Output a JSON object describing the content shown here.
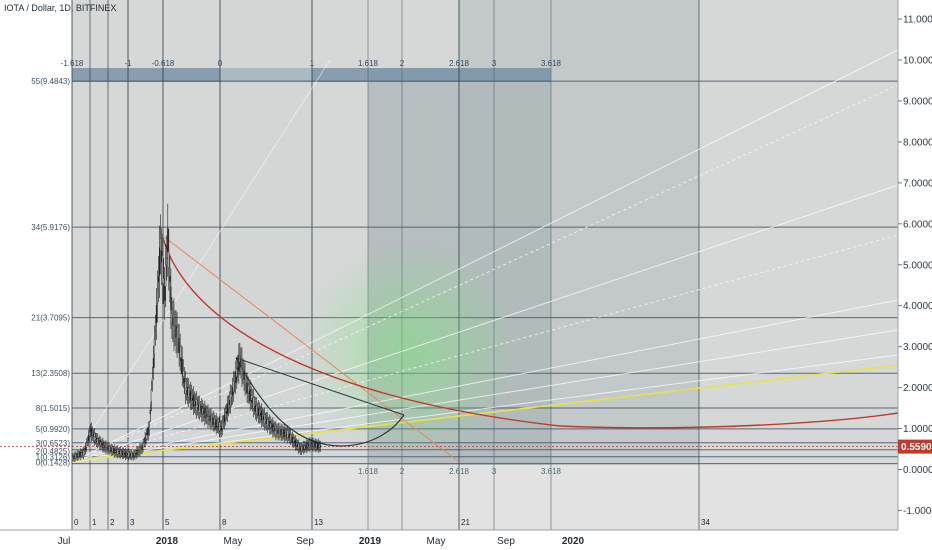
{
  "header": {
    "title": "IOTA / Dollar, 1D, BITFINEX"
  },
  "chart_data": {
    "type": "candlestick",
    "symbol": "IOTA / Dollar",
    "interval": "1D",
    "exchange": "BITFINEX",
    "ylim": [
      -1.25,
      11.4
    ],
    "y_ticks": [
      "11.0000",
      "10.0000",
      "9.0000",
      "8.0000",
      "7.0000",
      "6.0000",
      "5.0000",
      "4.0000",
      "3.0000",
      "2.0000",
      "1.0000",
      "0.0000",
      "-1.0000"
    ],
    "x_labels": [
      "Jul",
      "2018",
      "May",
      "Sep",
      "2019",
      "May",
      "Sep",
      "2020"
    ],
    "last_price": {
      "text": "0.5590",
      "value": 0.559
    },
    "fib_time_top": [
      "-1.618",
      "-1",
      "-0.618",
      "0",
      "1",
      "1.618",
      "2",
      "2.618",
      "3",
      "3.618"
    ],
    "fib_time_bottom": [
      "1.618",
      "2",
      "2.618",
      "3",
      "3.618"
    ],
    "fib_sequence": [
      "0",
      "1",
      "2",
      "3",
      "5",
      "8",
      "13",
      "21",
      "34"
    ],
    "fib_price_levels": [
      {
        "label": "55(9.4843)",
        "value": 9.4843
      },
      {
        "label": "34(5.9176)",
        "value": 5.9176
      },
      {
        "label": "21(3.7095)",
        "value": 3.7095
      },
      {
        "label": "13(2.3508)",
        "value": 2.3508
      },
      {
        "label": "8(1.5015)",
        "value": 1.5015
      },
      {
        "label": "5(0.9920)",
        "value": 0.992
      },
      {
        "label": "3(0.6523)",
        "value": 0.6523
      },
      {
        "label": "2(0.4825)",
        "value": 0.4825
      },
      {
        "label": "1(0.3126)",
        "value": 0.3126
      },
      {
        "label": "0(0.1428)",
        "value": 0.1428
      }
    ],
    "price_series": [
      {
        "t": 0,
        "price": 0.28
      },
      {
        "t": 6,
        "price": 0.35
      },
      {
        "t": 12,
        "price": 0.42
      },
      {
        "t": 18,
        "price": 0.95
      },
      {
        "t": 24,
        "price": 0.72
      },
      {
        "t": 32,
        "price": 0.55
      },
      {
        "t": 42,
        "price": 0.44
      },
      {
        "t": 52,
        "price": 0.38
      },
      {
        "t": 60,
        "price": 0.35
      },
      {
        "t": 68,
        "price": 0.52
      },
      {
        "t": 75,
        "price": 1.0
      },
      {
        "t": 82,
        "price": 3.8
      },
      {
        "t": 86,
        "price": 5.5
      },
      {
        "t": 90,
        "price": 4.3
      },
      {
        "t": 93,
        "price": 5.6
      },
      {
        "t": 97,
        "price": 3.7
      },
      {
        "t": 103,
        "price": 3.2
      },
      {
        "t": 110,
        "price": 2.0
      },
      {
        "t": 120,
        "price": 1.6
      },
      {
        "t": 132,
        "price": 1.3
      },
      {
        "t": 145,
        "price": 1.0
      },
      {
        "t": 155,
        "price": 1.8
      },
      {
        "t": 163,
        "price": 2.7
      },
      {
        "t": 170,
        "price": 2.0
      },
      {
        "t": 178,
        "price": 1.5
      },
      {
        "t": 188,
        "price": 1.2
      },
      {
        "t": 198,
        "price": 0.95
      },
      {
        "t": 210,
        "price": 0.85
      },
      {
        "t": 222,
        "price": 0.5
      },
      {
        "t": 232,
        "price": 0.62
      },
      {
        "t": 242,
        "price": 0.56
      }
    ]
  }
}
